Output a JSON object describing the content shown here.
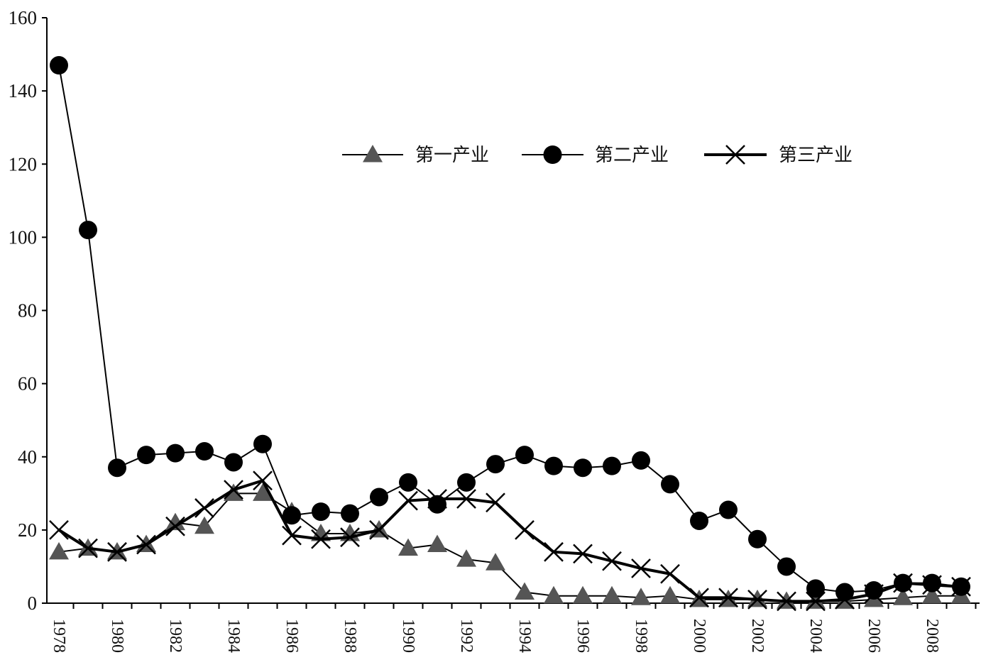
{
  "chart_data": {
    "type": "line",
    "title": "",
    "xlabel": "",
    "ylabel": "",
    "ylim": [
      0,
      160
    ],
    "yticks": [
      0,
      20,
      40,
      60,
      80,
      100,
      120,
      140,
      160
    ],
    "x": [
      1978,
      1979,
      1980,
      1981,
      1982,
      1983,
      1984,
      1985,
      1986,
      1987,
      1988,
      1989,
      1990,
      1991,
      1992,
      1993,
      1994,
      1995,
      1996,
      1997,
      1998,
      1999,
      2000,
      2001,
      2002,
      2003,
      2004,
      2005,
      2006,
      2007,
      2008,
      2009
    ],
    "xtick_labels": [
      "1978",
      "1980",
      "1982",
      "1984",
      "1986",
      "1988",
      "1990",
      "1992",
      "1994",
      "1996",
      "1998",
      "2000",
      "2002",
      "2004",
      "2006",
      "2008"
    ],
    "grid": false,
    "legend_position": "top-right",
    "series": [
      {
        "name": "第一产业",
        "marker": "triangle",
        "color": "#555555",
        "values": [
          14,
          15,
          14,
          16,
          22,
          21,
          30,
          30,
          25,
          19,
          19,
          20,
          15,
          16,
          12,
          11,
          3,
          2,
          2,
          2,
          1.5,
          2,
          1,
          1,
          1,
          0.5,
          0.5,
          0.5,
          1,
          1.5,
          2,
          2
        ]
      },
      {
        "name": "第二产业",
        "marker": "circle",
        "color": "#000000",
        "values": [
          147,
          102,
          37,
          40.5,
          41,
          41.5,
          38.5,
          43.5,
          24,
          25,
          24.5,
          29,
          33,
          27,
          33,
          38,
          40.5,
          37.5,
          37,
          37.5,
          39,
          32.5,
          22.5,
          25.5,
          17.5,
          10,
          4,
          3,
          3.5,
          5.5,
          5.5,
          4.5
        ]
      },
      {
        "name": "第三产业",
        "marker": "x",
        "color": "#000000",
        "values": [
          20,
          15,
          14,
          16,
          21,
          26,
          31,
          33.5,
          18.5,
          17.5,
          18,
          20,
          28,
          28.5,
          28.5,
          27.5,
          20,
          14,
          13.5,
          11.5,
          9.5,
          8,
          1.5,
          1.5,
          1,
          0.5,
          0.5,
          1,
          2.5,
          5.5,
          5,
          4.5
        ]
      }
    ]
  }
}
